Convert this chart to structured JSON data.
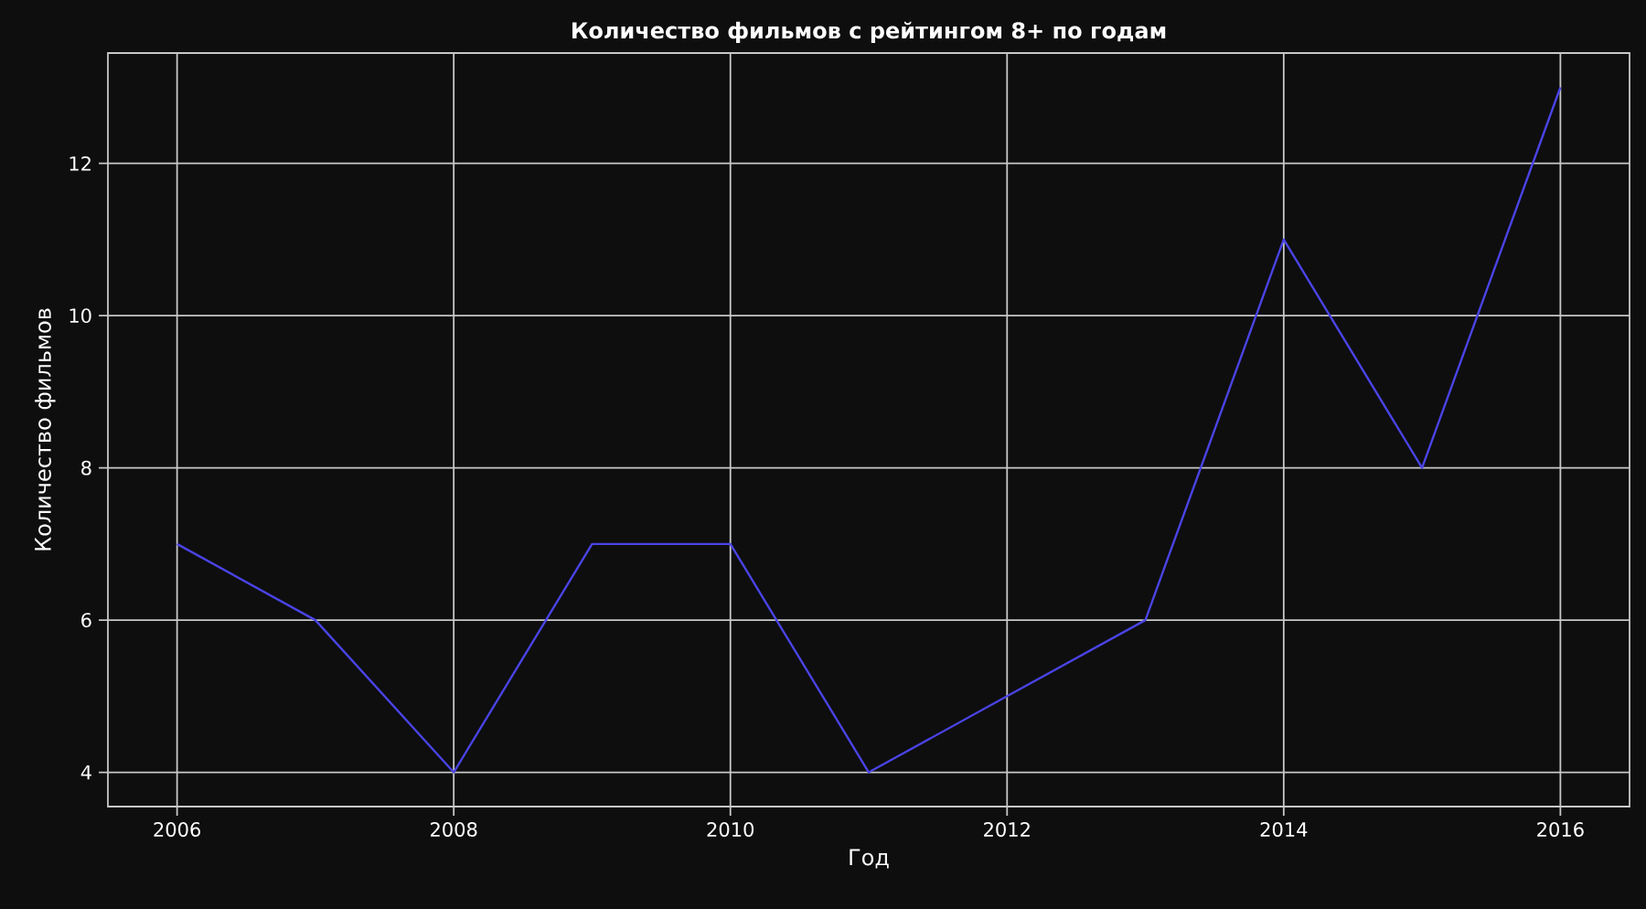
{
  "chart_data": {
    "type": "line",
    "title": "Количество фильмов с рейтингом 8+ по годам",
    "xlabel": "Год",
    "ylabel": "Количество фильмов",
    "x": [
      2006,
      2007,
      2008,
      2009,
      2010,
      2011,
      2012,
      2013,
      2014,
      2015,
      2016
    ],
    "series": [
      {
        "color": "#4a44e6",
        "values": [
          7,
          6,
          4,
          7,
          7,
          4,
          5,
          6,
          11,
          8,
          13
        ]
      }
    ],
    "xlim": [
      2005.5,
      2016.5
    ],
    "ylim": [
      3.55,
      13.45
    ],
    "xticks": [
      2006,
      2008,
      2010,
      2012,
      2014,
      2016
    ],
    "yticks": [
      4,
      6,
      8,
      10,
      12
    ],
    "grid": true,
    "marker": "none",
    "line_style": "solid"
  }
}
